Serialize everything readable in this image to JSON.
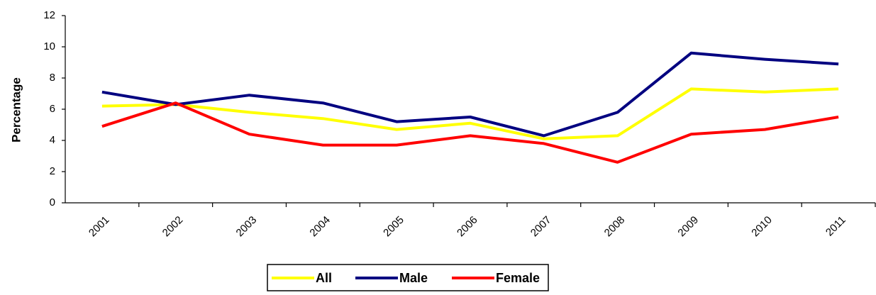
{
  "chart_data": {
    "type": "line",
    "y_label": "Percentage",
    "categories": [
      "2001",
      "2002",
      "2003",
      "2004",
      "2005",
      "2006",
      "2007",
      "2008",
      "2009",
      "2010",
      "2011"
    ],
    "series": [
      {
        "name": "All",
        "color": "#ffff00",
        "values": [
          6.2,
          6.3,
          5.8,
          5.4,
          4.7,
          5.1,
          4.1,
          4.3,
          7.3,
          7.1,
          7.3
        ]
      },
      {
        "name": "Male",
        "color": "#000080",
        "values": [
          7.1,
          6.3,
          6.9,
          6.4,
          5.2,
          5.5,
          4.3,
          5.8,
          9.6,
          9.2,
          8.9
        ]
      },
      {
        "name": "Female",
        "color": "#ff0000",
        "values": [
          4.9,
          6.4,
          4.4,
          3.7,
          3.7,
          4.3,
          3.8,
          2.6,
          4.4,
          4.7,
          5.5
        ]
      }
    ],
    "ylim": [
      0,
      12
    ],
    "yticks": [
      0,
      2,
      4,
      6,
      8,
      10,
      12
    ],
    "grid": false,
    "legend": "bottom"
  }
}
